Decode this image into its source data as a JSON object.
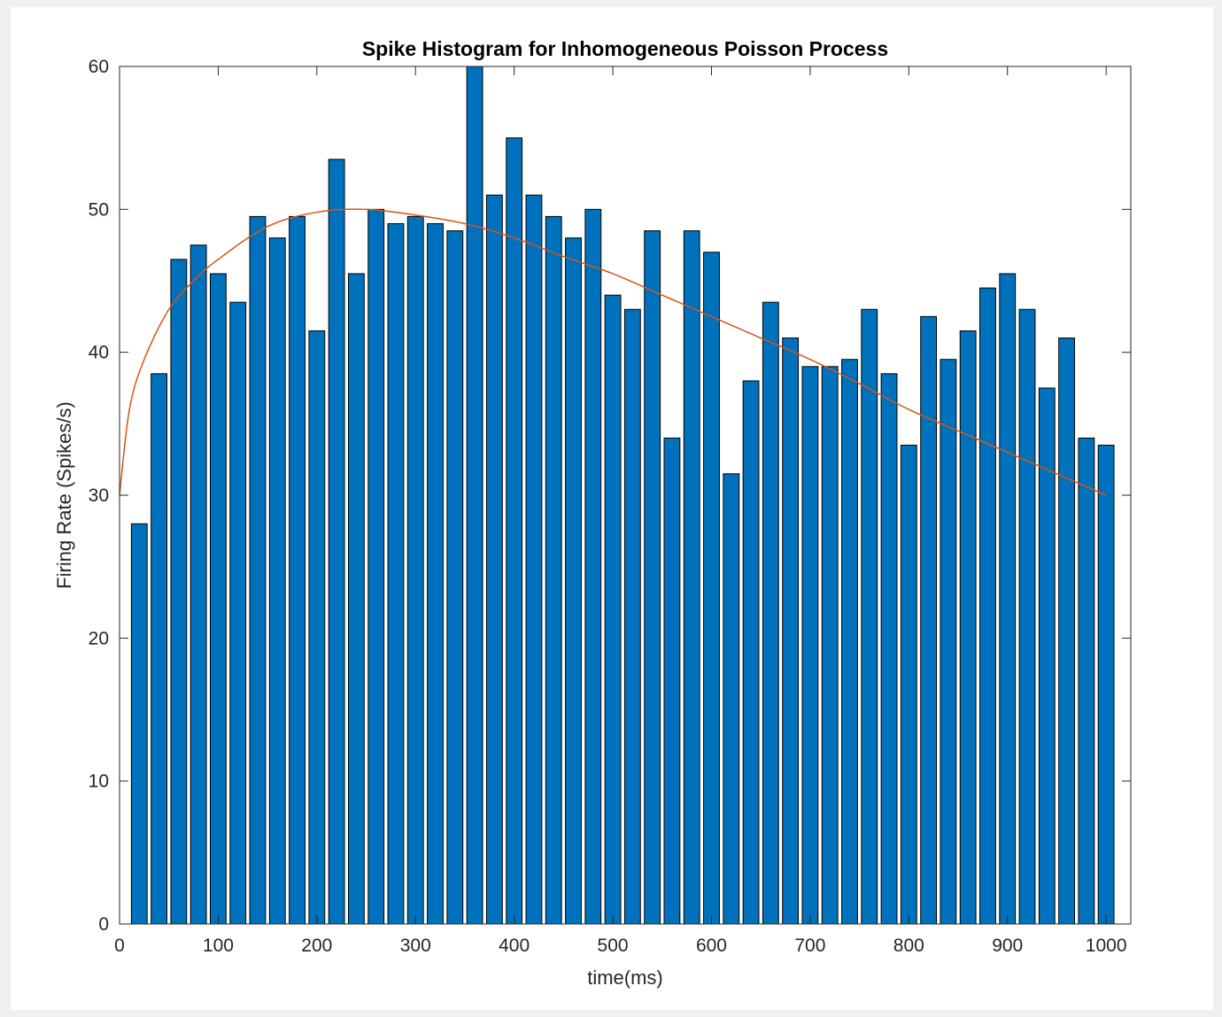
{
  "chart_data": {
    "type": "bar",
    "title": "Spike Histogram for Inhomogeneous Poisson Process",
    "xlabel": "time(ms)",
    "ylabel": "Firing Rate (Spikes/s)",
    "xlim": [
      0,
      1025
    ],
    "ylim": [
      0,
      60
    ],
    "xticks": [
      0,
      100,
      200,
      300,
      400,
      500,
      600,
      700,
      800,
      900,
      1000
    ],
    "yticks": [
      0,
      10,
      20,
      30,
      40,
      50,
      60
    ],
    "grid": false,
    "bar_width_ms": 16,
    "bar_color": "#0072BD",
    "bars": {
      "x": [
        20,
        40,
        60,
        80,
        100,
        120,
        140,
        160,
        180,
        200,
        220,
        240,
        260,
        280,
        300,
        320,
        340,
        360,
        380,
        400,
        420,
        440,
        460,
        480,
        500,
        520,
        540,
        560,
        580,
        600,
        620,
        640,
        660,
        680,
        700,
        720,
        740,
        760,
        780,
        800,
        820,
        840,
        860,
        880,
        900,
        920,
        940,
        960,
        980,
        1000
      ],
      "values": [
        28,
        38.5,
        46.5,
        47.5,
        45.5,
        43.5,
        49.5,
        48,
        49.5,
        41.5,
        53.5,
        45.5,
        50,
        49,
        49.5,
        49,
        48.5,
        60,
        51,
        55,
        51,
        49.5,
        48,
        50,
        44,
        43,
        48.5,
        34,
        48.5,
        47,
        31.5,
        38,
        43.5,
        41,
        39,
        39,
        39.5,
        43,
        38.5,
        33.5,
        42.5,
        39.5,
        41.5,
        44.5,
        45.5,
        43,
        37.5,
        41,
        34,
        33.5
      ]
    },
    "curve": {
      "color": "#D95319",
      "x": [
        0,
        10,
        25,
        50,
        75,
        100,
        150,
        200,
        250,
        300,
        350,
        400,
        450,
        500,
        550,
        600,
        650,
        700,
        750,
        800,
        850,
        900,
        950,
        1000
      ],
      "values": [
        30,
        36,
        39.5,
        43,
        45,
        46.5,
        48.8,
        49.8,
        50,
        49.6,
        49,
        48,
        46.7,
        45.5,
        44,
        42.5,
        41,
        39.5,
        37.8,
        36,
        34.5,
        33,
        31.5,
        30
      ]
    }
  }
}
